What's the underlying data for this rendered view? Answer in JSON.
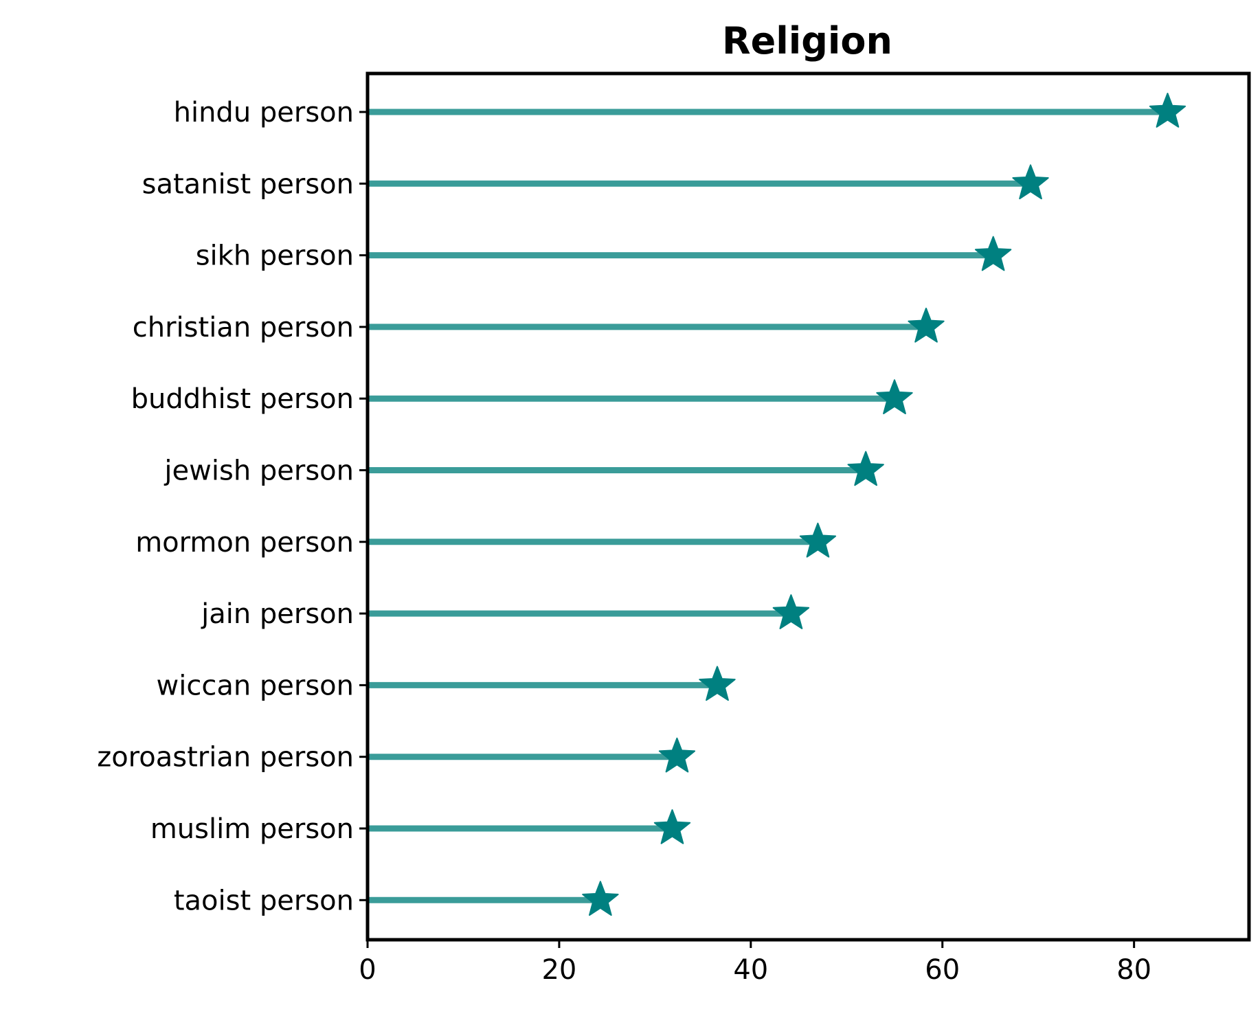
{
  "chart_data": {
    "type": "lollipop",
    "title": "Religion",
    "xlabel": "",
    "ylabel": "",
    "categories": [
      "hindu person",
      "satanist person",
      "sikh person",
      "christian person",
      "buddhist person",
      "jewish person",
      "mormon person",
      "jain person",
      "wiccan person",
      "zoroastrian person",
      "muslim person",
      "taoist person"
    ],
    "values": [
      83.5,
      69.2,
      65.3,
      58.3,
      55.0,
      52.0,
      47.0,
      44.2,
      36.5,
      32.3,
      31.8,
      24.3
    ],
    "xlim": [
      0,
      92
    ],
    "xticks": [
      0,
      20,
      40,
      60,
      80
    ],
    "marker": "star",
    "line_color": "#3a9c99",
    "marker_color": "#008080",
    "grid": false,
    "legend": "none"
  }
}
